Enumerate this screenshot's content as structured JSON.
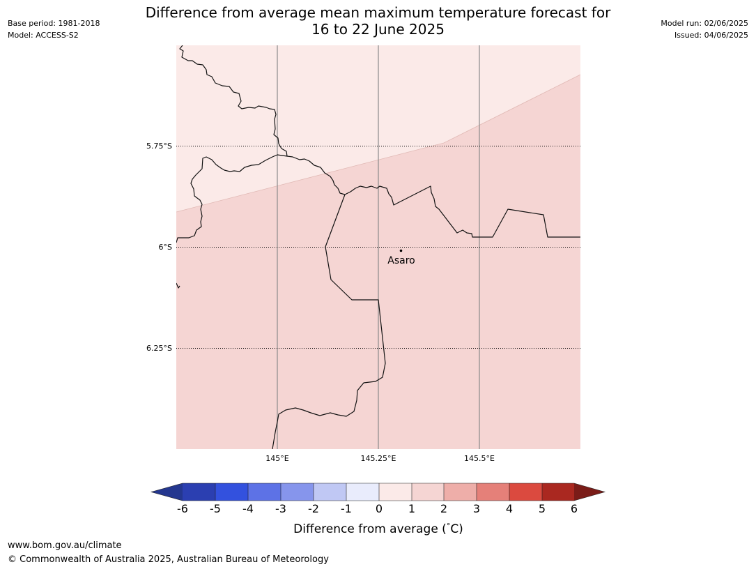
{
  "header": {
    "title_line1": "Difference from average mean maximum temperature forecast for",
    "title_line2": "16 to 22 June 2025",
    "base_period": "Base period: 1981-2018",
    "model": "Model: ACCESS-S2",
    "model_run": "Model run: 02/06/2025",
    "issued": "Issued: 04/06/2025"
  },
  "map": {
    "lat_labels": [
      "5.75°S",
      "6°S",
      "6.25°S"
    ],
    "lon_labels": [
      "145°E",
      "145.25°E",
      "145.5°E"
    ],
    "place": {
      "name": "Asaro"
    },
    "regions": [
      {
        "bin": "0 to 1",
        "color": "#fbeae8"
      },
      {
        "bin": "1 to 2",
        "color": "#f5d5d3"
      }
    ]
  },
  "colorbar": {
    "ticks": [
      "-6",
      "-5",
      "-4",
      "-3",
      "-2",
      "-1",
      "0",
      "1",
      "2",
      "3",
      "4",
      "5",
      "6"
    ],
    "colors": [
      "#24378f",
      "#2b3fb1",
      "#3351de",
      "#5d72e6",
      "#8695ec",
      "#c0c8f4",
      "#e9ecfc",
      "#fbeae8",
      "#f5d5d3",
      "#eeaea9",
      "#e58079",
      "#db4a3f",
      "#aa2820",
      "#7a1c18"
    ],
    "label": "Difference from average (°C)",
    "label_prefix": "Difference from average (",
    "label_deg": "°",
    "label_suffix": "C)"
  },
  "footer": {
    "url": "www.bom.gov.au/climate",
    "copyright": "© Commonwealth of Australia 2025, Australian Bureau of Meteorology"
  }
}
